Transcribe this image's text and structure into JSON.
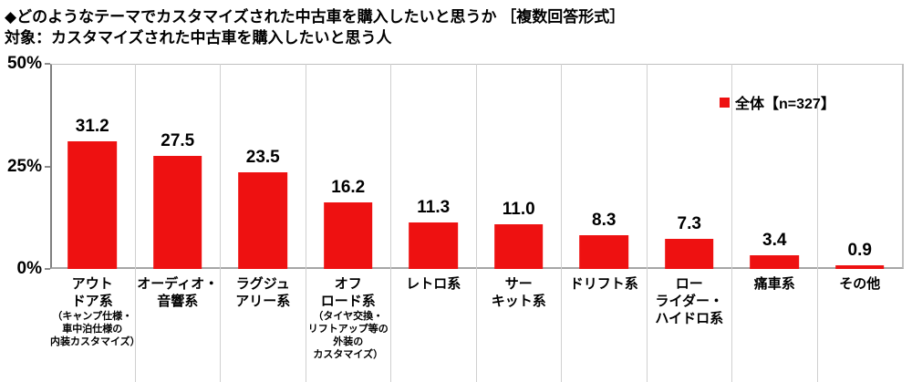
{
  "header": {
    "title": "◆どのようなテーマでカスタマイズされた中古車を購入したいと思うか ［複数回答形式］",
    "subtitle": "対象：カスタマイズされた中古車を購入したいと思う人"
  },
  "legend": {
    "label": "全体【n=327】"
  },
  "colors": {
    "bar": "#ee1111",
    "axis_main": "#8c8c8c",
    "text": "#000000"
  },
  "chart_data": {
    "type": "bar",
    "title": "◆どのようなテーマでカスタマイズされた中古車を購入したいと思うか ［複数回答形式］",
    "subtitle": "対象：カスタマイズされた中古車を購入したいと思う人",
    "legend_entry": "全体【n=327】",
    "legend_position": "top-right",
    "grid": "vertical-category-separators-only",
    "ylim": [
      0,
      50
    ],
    "yticks": [
      {
        "label": "50%",
        "value": 50
      },
      {
        "label": "25%",
        "value": 25
      },
      {
        "label": "0%",
        "value": 0
      }
    ],
    "categories": [
      {
        "label_lines": [
          "アウト",
          "ドア系"
        ],
        "sublabel_lines": [
          "（キャンプ仕様・",
          "車中泊仕様の",
          "内装カスタマイズ）"
        ]
      },
      {
        "label_lines": [
          "オーディオ・",
          "音響系"
        ],
        "sublabel_lines": []
      },
      {
        "label_lines": [
          "ラグジュ",
          "アリー系"
        ],
        "sublabel_lines": []
      },
      {
        "label_lines": [
          "オフ",
          "ロード系"
        ],
        "sublabel_lines": [
          "（タイヤ交換・",
          "リフトアップ等の",
          "外装の",
          "カスタマイズ）"
        ]
      },
      {
        "label_lines": [
          "レトロ系"
        ],
        "sublabel_lines": []
      },
      {
        "label_lines": [
          "サー",
          "キット系"
        ],
        "sublabel_lines": []
      },
      {
        "label_lines": [
          "ドリフト系"
        ],
        "sublabel_lines": []
      },
      {
        "label_lines": [
          "ロー",
          "ライダー・",
          "ハイドロ系"
        ],
        "sublabel_lines": []
      },
      {
        "label_lines": [
          "痛車系"
        ],
        "sublabel_lines": []
      },
      {
        "label_lines": [
          "その他"
        ],
        "sublabel_lines": []
      }
    ],
    "values": [
      31.2,
      27.5,
      23.5,
      16.2,
      11.3,
      11.0,
      8.3,
      7.3,
      3.4,
      0.9
    ]
  }
}
